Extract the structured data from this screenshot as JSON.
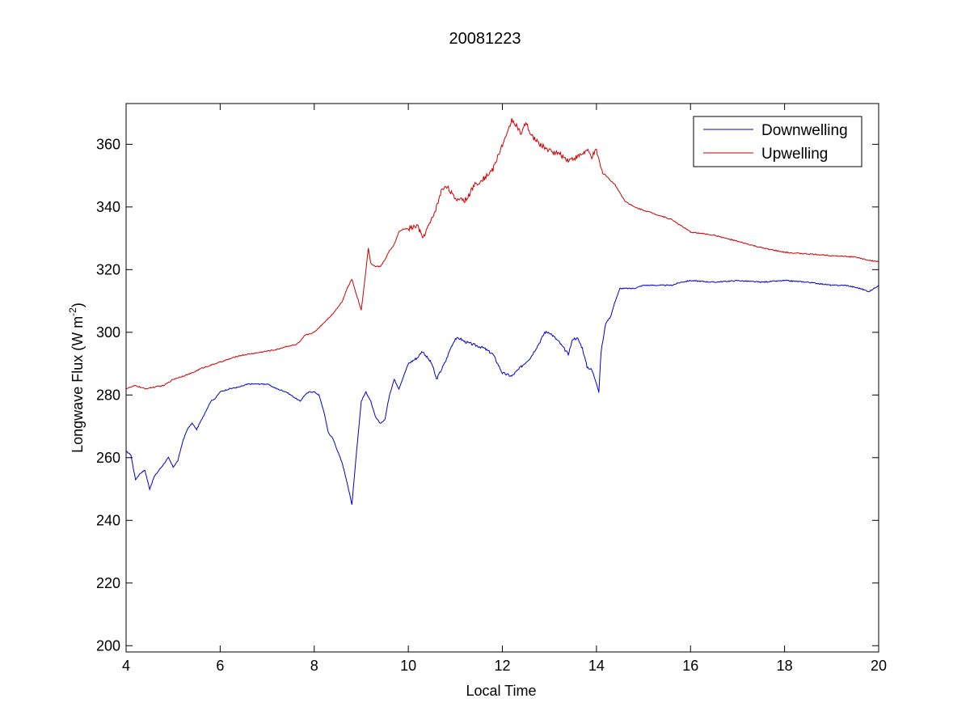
{
  "chart_data": {
    "type": "line",
    "title": "20081223",
    "xlabel": "Local Time",
    "ylabel": {
      "main": "Longwave Flux (W m",
      "superscript": "-2",
      "close": ")"
    },
    "xlim": [
      4,
      20
    ],
    "ylim": [
      198,
      373
    ],
    "xticks": [
      4,
      6,
      8,
      10,
      12,
      14,
      16,
      18,
      20
    ],
    "yticks": [
      200,
      220,
      240,
      260,
      280,
      300,
      320,
      340,
      360
    ],
    "grid": false,
    "legend_position": "top-right",
    "series": [
      {
        "name": "Downwelling",
        "color": "#0000cc",
        "x": [
          4.0,
          4.1,
          4.2,
          4.3,
          4.4,
          4.5,
          4.6,
          4.7,
          4.8,
          4.9,
          5.0,
          5.1,
          5.2,
          5.3,
          5.4,
          5.5,
          5.6,
          5.7,
          5.8,
          5.9,
          6.0,
          6.2,
          6.4,
          6.6,
          6.8,
          7.0,
          7.2,
          7.4,
          7.6,
          7.7,
          7.8,
          7.9,
          8.0,
          8.1,
          8.2,
          8.3,
          8.4,
          8.5,
          8.6,
          8.7,
          8.8,
          8.9,
          9.0,
          9.1,
          9.2,
          9.3,
          9.4,
          9.5,
          9.6,
          9.7,
          9.8,
          9.9,
          10.0,
          10.2,
          10.3,
          10.5,
          10.6,
          10.8,
          10.9,
          11.0,
          11.1,
          11.2,
          11.4,
          11.6,
          11.8,
          12.0,
          12.2,
          12.4,
          12.6,
          12.8,
          12.9,
          13.0,
          13.2,
          13.4,
          13.5,
          13.6,
          13.7,
          13.8,
          13.9,
          14.0,
          14.05,
          14.1,
          14.2,
          14.3,
          14.4,
          14.5,
          14.6,
          14.8,
          15.0,
          15.2,
          15.4,
          15.6,
          15.8,
          16.0,
          16.5,
          17.0,
          17.5,
          18.0,
          18.5,
          19.0,
          19.3,
          19.6,
          19.8,
          20.0
        ],
        "values": [
          262,
          261,
          253,
          255,
          256,
          250,
          254,
          256,
          258,
          260,
          257,
          259,
          265,
          269,
          271,
          269,
          272,
          275,
          278,
          279,
          281,
          282,
          282.5,
          283.5,
          283.5,
          283.5,
          282,
          281,
          279,
          278,
          280,
          281,
          281,
          280,
          275,
          268,
          266,
          262,
          258,
          252,
          245,
          262,
          278,
          281,
          278,
          273,
          271,
          272,
          280,
          285,
          282,
          286,
          290,
          292,
          294,
          290,
          285,
          291,
          295,
          298,
          298,
          297,
          296,
          295,
          293,
          287,
          286,
          289,
          292,
          297,
          300,
          300,
          297,
          293,
          298,
          298,
          295,
          289,
          288,
          284,
          281,
          294,
          303,
          305,
          310,
          314,
          314,
          314,
          315,
          315,
          315,
          315,
          316,
          316.5,
          316,
          316.5,
          316,
          316.5,
          316,
          315,
          315,
          314,
          313,
          315
        ]
      },
      {
        "name": "Upwelling",
        "color": "#cc0000",
        "x": [
          4.0,
          4.2,
          4.4,
          4.6,
          4.8,
          5.0,
          5.2,
          5.4,
          5.6,
          5.8,
          6.0,
          6.2,
          6.4,
          6.6,
          6.8,
          7.0,
          7.2,
          7.4,
          7.6,
          7.7,
          7.8,
          8.0,
          8.2,
          8.4,
          8.6,
          8.7,
          8.8,
          8.9,
          9.0,
          9.1,
          9.15,
          9.2,
          9.3,
          9.4,
          9.5,
          9.6,
          9.7,
          9.8,
          9.9,
          10.0,
          10.2,
          10.3,
          10.4,
          10.5,
          10.6,
          10.7,
          10.8,
          10.9,
          11.0,
          11.1,
          11.2,
          11.3,
          11.4,
          11.6,
          11.8,
          11.9,
          12.0,
          12.1,
          12.2,
          12.3,
          12.4,
          12.5,
          12.6,
          12.8,
          13.0,
          13.2,
          13.4,
          13.6,
          13.8,
          13.9,
          14.0,
          14.1,
          14.2,
          14.4,
          14.6,
          14.8,
          15.0,
          15.2,
          15.4,
          15.6,
          15.8,
          16.0,
          16.5,
          17.0,
          17.5,
          18.0,
          18.5,
          19.0,
          19.5,
          19.8,
          20.0
        ],
        "values": [
          282,
          283,
          282,
          282.5,
          283,
          285,
          286,
          287,
          288.5,
          289.5,
          290.5,
          291.5,
          292.5,
          293,
          293.5,
          294,
          294.5,
          295.5,
          296,
          297,
          299,
          300,
          303,
          306,
          310,
          314,
          317,
          312,
          307,
          320,
          327,
          322,
          321,
          321,
          323,
          326,
          328,
          332,
          333,
          333,
          334,
          330,
          333,
          336,
          340,
          345,
          347,
          345,
          342,
          343,
          342,
          344,
          347,
          349,
          352,
          356,
          360,
          363,
          368,
          366,
          363,
          367,
          363,
          360,
          358,
          357,
          355,
          356,
          358,
          356,
          358,
          352,
          350,
          347,
          342,
          340,
          339,
          338,
          337,
          336,
          334,
          332,
          331,
          329,
          327,
          325.5,
          325,
          324.5,
          324,
          323,
          322.5
        ]
      }
    ]
  }
}
